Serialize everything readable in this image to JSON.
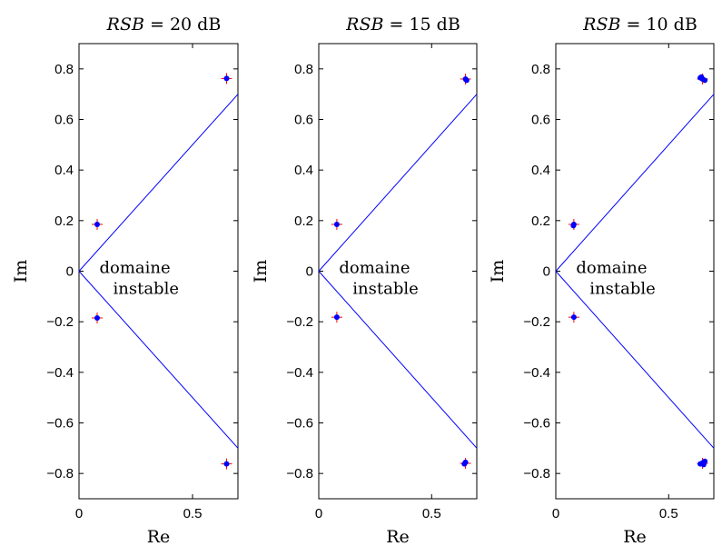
{
  "figure": {
    "ylabel": "Im",
    "xlabel": "Re"
  },
  "chart_data": [
    {
      "type": "scatter",
      "title": "RSB = 20 dB",
      "title_italic": "RSB",
      "title_rest": " = 20 dB",
      "xlabel": "Re",
      "ylabel": "Im",
      "xlim": [
        0,
        0.7
      ],
      "ylim": [
        -0.9,
        0.9
      ],
      "xticks": [
        0,
        0.5
      ],
      "xtick_labels": [
        "0",
        "0.5"
      ],
      "yticks": [
        -0.8,
        -0.6,
        -0.4,
        -0.2,
        0,
        0.2,
        0.4,
        0.6,
        0.8
      ],
      "ytick_labels": [
        "−0.8",
        "−0.6",
        "−0.4",
        "−0.2",
        "0",
        "0.2",
        "0.4",
        "0.6",
        "0.8"
      ],
      "annotation": [
        "domaine",
        "instable"
      ],
      "boundary_lines": [
        {
          "name": "upper",
          "x": [
            0,
            0.7
          ],
          "y": [
            0,
            0.7
          ],
          "color": "#0000ff"
        },
        {
          "name": "lower",
          "x": [
            0,
            0.7
          ],
          "y": [
            0,
            -0.7
          ],
          "color": "#0000ff"
        }
      ],
      "series": [
        {
          "marker": "plus",
          "color": "#ff0000",
          "x": [
            0.08,
            0.08,
            0.65,
            0.65
          ],
          "y": [
            0.185,
            -0.185,
            0.762,
            -0.762
          ]
        },
        {
          "marker": "dot",
          "color": "#0000ff",
          "x": [
            0.08,
            0.08,
            0.65,
            0.65
          ],
          "y": [
            0.185,
            -0.185,
            0.762,
            -0.762
          ]
        }
      ]
    },
    {
      "type": "scatter",
      "title": "RSB = 15 dB",
      "title_italic": "RSB",
      "title_rest": " = 15 dB",
      "xlabel": "Re",
      "ylabel": "Im",
      "xlim": [
        0,
        0.7
      ],
      "ylim": [
        -0.9,
        0.9
      ],
      "xticks": [
        0,
        0.5
      ],
      "xtick_labels": [
        "0",
        "0.5"
      ],
      "yticks": [
        -0.8,
        -0.6,
        -0.4,
        -0.2,
        0,
        0.2,
        0.4,
        0.6,
        0.8
      ],
      "ytick_labels": [
        "−0.8",
        "−0.6",
        "−0.4",
        "−0.2",
        "0",
        "0.2",
        "0.4",
        "0.6",
        "0.8"
      ],
      "annotation": [
        "domaine",
        "instable"
      ],
      "boundary_lines": [
        {
          "name": "upper",
          "x": [
            0,
            0.7
          ],
          "y": [
            0,
            0.7
          ],
          "color": "#0000ff"
        },
        {
          "name": "lower",
          "x": [
            0,
            0.7
          ],
          "y": [
            0,
            -0.7
          ],
          "color": "#0000ff"
        }
      ],
      "series": [
        {
          "marker": "plus",
          "color": "#ff0000",
          "x": [
            0.08,
            0.08,
            0.65,
            0.65
          ],
          "y": [
            0.185,
            -0.182,
            0.76,
            -0.76
          ]
        },
        {
          "marker": "dot",
          "color": "#0000ff",
          "x": [
            0.08,
            0.08,
            0.65,
            0.655,
            0.645,
            0.65
          ],
          "y": [
            0.185,
            -0.182,
            0.76,
            0.755,
            -0.762,
            -0.756
          ]
        }
      ]
    },
    {
      "type": "scatter",
      "title": "RSB = 10 dB",
      "title_italic": "RSB",
      "title_rest": " = 10 dB",
      "xlabel": "Re",
      "ylabel": "Im",
      "xlim": [
        0,
        0.7
      ],
      "ylim": [
        -0.9,
        0.9
      ],
      "xticks": [
        0,
        0.5
      ],
      "xtick_labels": [
        "0",
        "0.5"
      ],
      "yticks": [
        -0.8,
        -0.6,
        -0.4,
        -0.2,
        0,
        0.2,
        0.4,
        0.6,
        0.8
      ],
      "ytick_labels": [
        "−0.8",
        "−0.6",
        "−0.4",
        "−0.2",
        "0",
        "0.2",
        "0.4",
        "0.6",
        "0.8"
      ],
      "annotation": [
        "domaine",
        "instable"
      ],
      "boundary_lines": [
        {
          "name": "upper",
          "x": [
            0,
            0.7
          ],
          "y": [
            0,
            0.7
          ],
          "color": "#0000ff"
        },
        {
          "name": "lower",
          "x": [
            0,
            0.7
          ],
          "y": [
            0,
            -0.7
          ],
          "color": "#0000ff"
        }
      ],
      "series": [
        {
          "marker": "plus",
          "color": "#ff0000",
          "x": [
            0.08,
            0.08,
            0.65,
            0.65
          ],
          "y": [
            0.185,
            -0.182,
            0.76,
            -0.76
          ]
        },
        {
          "marker": "dot",
          "color": "#0000ff",
          "x": [
            0.08,
            0.078,
            0.08,
            0.64,
            0.65,
            0.66,
            0.645,
            0.64,
            0.65,
            0.66,
            0.655
          ],
          "y": [
            0.185,
            0.18,
            -0.182,
            0.765,
            0.76,
            0.755,
            0.768,
            -0.762,
            -0.758,
            -0.752,
            -0.765
          ]
        }
      ]
    }
  ]
}
